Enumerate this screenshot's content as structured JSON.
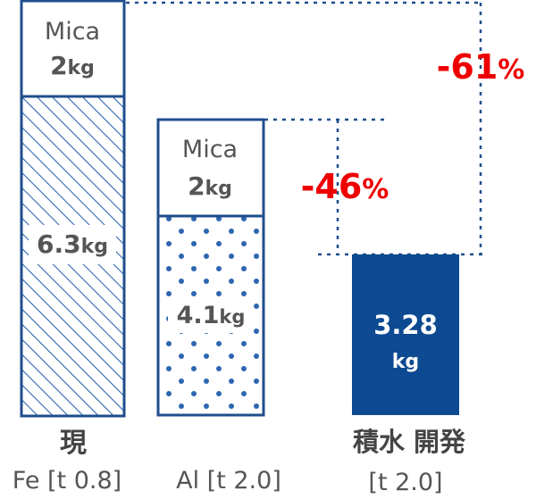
{
  "chart_data": {
    "type": "bar",
    "stacked": true,
    "categories": [
      {
        "name": "現",
        "sub": "Fe [t 0.8]"
      },
      {
        "name": "",
        "sub": "Al [t 2.0]"
      },
      {
        "name": "積水 開発",
        "sub": "[t 2.0]"
      }
    ],
    "bars": [
      {
        "segments": [
          {
            "label": "6.3",
            "unit": "kg",
            "value": 6.3,
            "fill": "hatch"
          },
          {
            "label": "Mica",
            "value_label": "2",
            "unit": "kg",
            "value": 2,
            "fill": "white"
          }
        ],
        "total": 8.3
      },
      {
        "segments": [
          {
            "label": "4.1",
            "unit": "kg",
            "value": 4.1,
            "fill": "dots"
          },
          {
            "label": "Mica",
            "value_label": "2",
            "unit": "kg",
            "value": 2,
            "fill": "white"
          }
        ],
        "total": 6.1
      },
      {
        "segments": [
          {
            "label": "3.28",
            "unit": "kg",
            "value": 3.28,
            "fill": "solid"
          }
        ],
        "total": 3.28
      }
    ],
    "annotations": [
      {
        "text": "-46",
        "suffix": "%",
        "from_bar": 1,
        "to_bar": 2
      },
      {
        "text": "-61",
        "suffix": "%",
        "from_bar": 0,
        "to_bar": 2
      }
    ],
    "colors": {
      "bar_outline": "#1f4e8c",
      "solid_fill": "#0d4a91",
      "pattern": "#2e66b0",
      "value_text": "#555555",
      "annotation": "#ee0000",
      "guide": "#1f4e8c",
      "axis_text": "#333333"
    }
  }
}
